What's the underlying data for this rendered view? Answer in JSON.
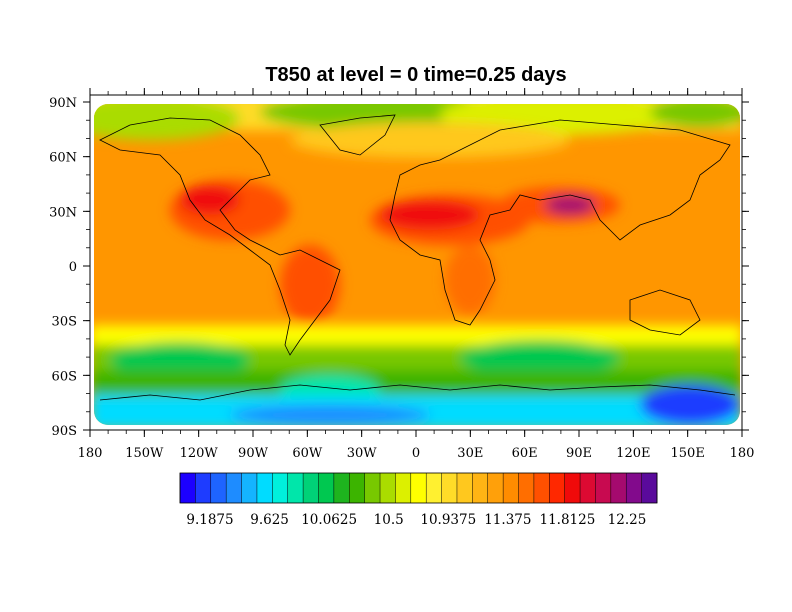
{
  "chart_data": {
    "type": "heatmap",
    "title": "T850 at level = 0 time=0.25 days",
    "x_ticks": [
      "180",
      "150W",
      "120W",
      "90W",
      "60W",
      "30W",
      "0",
      "30E",
      "60E",
      "90E",
      "120E",
      "150E",
      "180"
    ],
    "y_ticks": [
      "90N",
      "60N",
      "30N",
      "0",
      "30S",
      "60S",
      "90S"
    ],
    "xlim": [
      -180,
      180
    ],
    "ylim": [
      -90,
      90
    ],
    "colorbar": {
      "labels": [
        "9.1875",
        "9.625",
        "10.0625",
        "10.5",
        "10.9375",
        "11.375",
        "11.8125",
        "12.25"
      ],
      "colors": [
        "#1c00ff",
        "#1e3cff",
        "#1e64ff",
        "#1e8cff",
        "#14b4ff",
        "#00dcff",
        "#00f0dc",
        "#00e6aa",
        "#00d278",
        "#00c850",
        "#1eb41e",
        "#3cb400",
        "#78c800",
        "#aadc00",
        "#dcf000",
        "#ffff00",
        "#fff030",
        "#ffdc28",
        "#ffc81e",
        "#ffb414",
        "#ffa00a",
        "#ff8c00",
        "#ff6e00",
        "#ff5000",
        "#ff2800",
        "#f00a0a",
        "#dc0a32",
        "#c80a50",
        "#a50a6e",
        "#820a8c",
        "#5a0a9b"
      ]
    }
  }
}
